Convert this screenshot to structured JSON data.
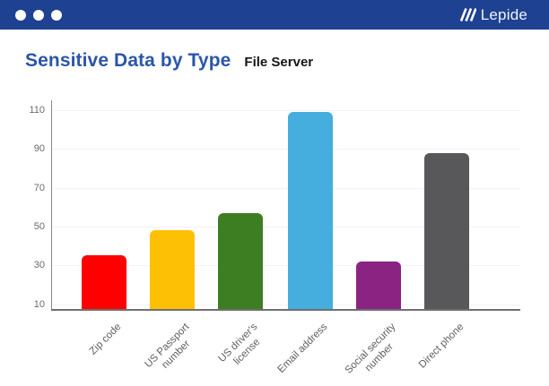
{
  "header": {
    "bar_color": "#1e4191",
    "window_dots_count": 3,
    "brand": "Lepide"
  },
  "title": {
    "main": "Sensitive Data by Type",
    "subtitle": "File Server"
  },
  "chart_data": {
    "type": "bar",
    "title": "Sensitive Data by Type",
    "subtitle": "File Server",
    "categories": [
      "Zip code",
      "US Passport number",
      "US driver's license",
      "Email address",
      "Social security number",
      "Direct phone"
    ],
    "label_lines": [
      [
        "Zip code"
      ],
      [
        "US Passport",
        "number"
      ],
      [
        "US driver's",
        "license"
      ],
      [
        "Email address"
      ],
      [
        "Social security",
        "number"
      ],
      [
        "Direct phone"
      ]
    ],
    "values": [
      35,
      48,
      57,
      109,
      32,
      88
    ],
    "bar_colors": [
      "#fe0000",
      "#fdc005",
      "#3e7e22",
      "#45aede",
      "#8b2382",
      "#58585a"
    ],
    "yticks": [
      10,
      30,
      50,
      70,
      90,
      110
    ],
    "ylim": [
      7,
      115
    ],
    "xlabel": "",
    "ylabel": "",
    "grid": "horizontal-light",
    "legend": "none",
    "axis_color": "#6f6f6f",
    "grid_color": "#f3f3f4",
    "tick_label_color": "#6b6b6b"
  }
}
